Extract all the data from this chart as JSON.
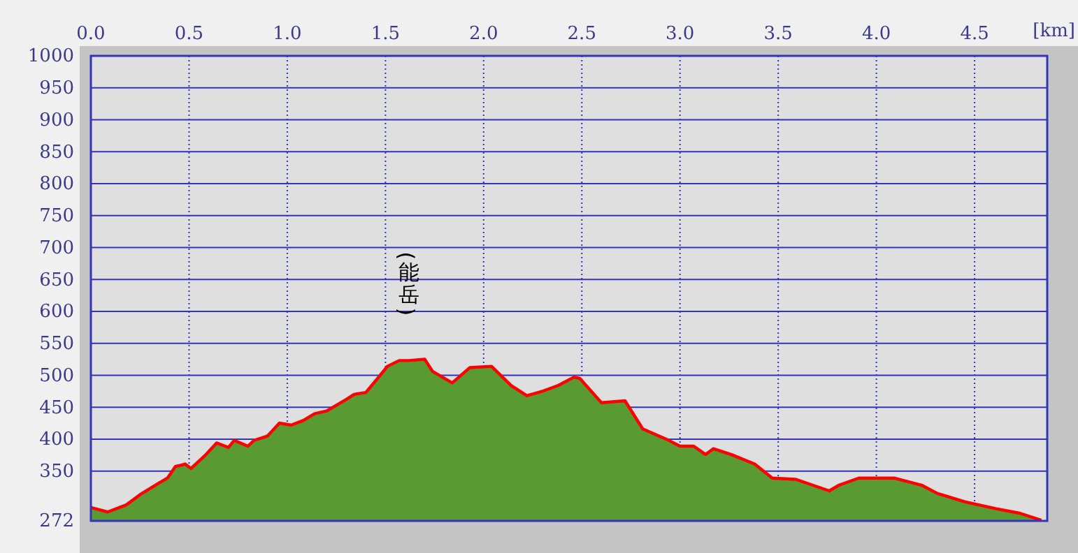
{
  "chart_data": {
    "type": "area",
    "xlabel": "[km]",
    "xlim": [
      0,
      4.87
    ],
    "xticks": [
      {
        "value": 0,
        "label": "0.0"
      },
      {
        "value": 0.5,
        "label": "0.5"
      },
      {
        "value": 1,
        "label": "1.0"
      },
      {
        "value": 1.5,
        "label": "1.5"
      },
      {
        "value": 2,
        "label": "2.0"
      },
      {
        "value": 2.5,
        "label": "2.5"
      },
      {
        "value": 3,
        "label": "3.0"
      },
      {
        "value": 3.5,
        "label": "3.5"
      },
      {
        "value": 4,
        "label": "4.0"
      },
      {
        "value": 4.5,
        "label": "4.5"
      }
    ],
    "ylim": [
      272,
      1000
    ],
    "yticks": [
      272,
      350,
      400,
      450,
      500,
      550,
      600,
      650,
      700,
      750,
      800,
      850,
      900,
      950,
      1000
    ],
    "grid": true,
    "x": [
      0,
      0.085,
      0.18,
      0.25,
      0.34,
      0.39,
      0.43,
      0.48,
      0.51,
      0.58,
      0.64,
      0.7,
      0.73,
      0.8,
      0.83,
      0.9,
      0.96,
      1.02,
      1.08,
      1.14,
      1.2,
      1.3,
      1.34,
      1.4,
      1.46,
      1.51,
      1.57,
      1.62,
      1.7,
      1.74,
      1.84,
      1.93,
      2.04,
      2.14,
      2.22,
      2.3,
      2.38,
      2.46,
      2.49,
      2.6,
      2.72,
      2.81,
      2.93,
      3,
      3.07,
      3.13,
      3.17,
      3.26,
      3.38,
      3.47,
      3.59,
      3.76,
      3.81,
      3.91,
      4.09,
      4.23,
      4.31,
      4.45,
      4.61,
      4.73,
      4.84
    ],
    "series": [
      {
        "color": "#5a9a32",
        "values": [
          293,
          286,
          297,
          313,
          330,
          339,
          357,
          361,
          354,
          374,
          394,
          387,
          398,
          389,
          398,
          405,
          425,
          422,
          429,
          440,
          444,
          462,
          470,
          473,
          495,
          514,
          523,
          523,
          525,
          506,
          488,
          512,
          514,
          484,
          468,
          475,
          484,
          497,
          495,
          457,
          460,
          416,
          400,
          389,
          389,
          376,
          385,
          376,
          361,
          339,
          337,
          319,
          328,
          339,
          339,
          328,
          315,
          302,
          291,
          284,
          273
        ]
      }
    ],
    "annotations": [
      {
        "text": "(能岳)",
        "x": 1.62,
        "y": 523
      }
    ]
  }
}
